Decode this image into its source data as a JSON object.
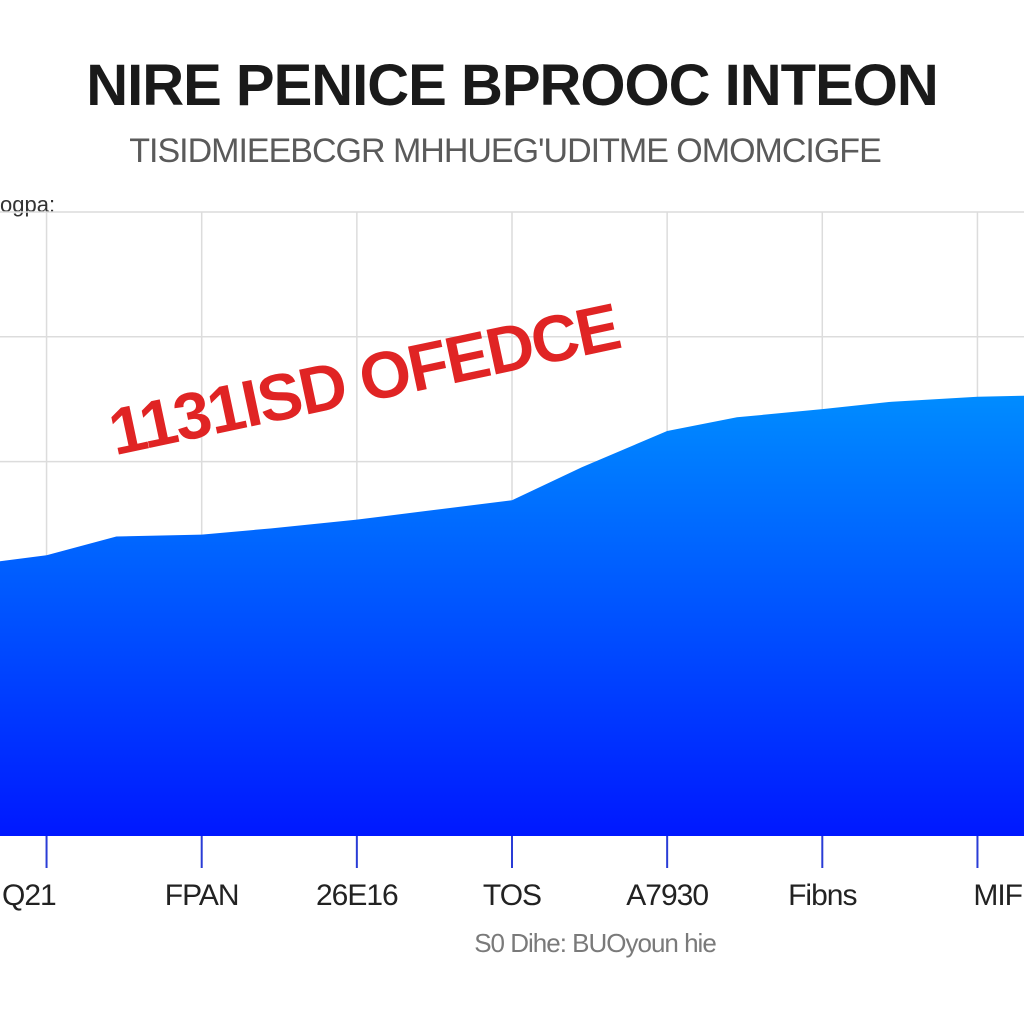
{
  "chart_data": {
    "type": "area",
    "title": "NIRE PENICE BPROOC INTEON",
    "subtitle": "TISIDMIEEBCGR MHHUEG'UDITME OMOMCIGFE",
    "ylabel": "ogpa:",
    "xlabel": "S0 Dihe: BUOyoun hie",
    "annotation": "1131ISD OFEDCE",
    "categories": [
      "Q21",
      "FPAN",
      "26E16",
      "TOS",
      "A7930",
      "Fibns",
      "MIF"
    ],
    "x": [
      0,
      0.45,
      1,
      1.45,
      2,
      2.45,
      3,
      3.45,
      4,
      4.45,
      5,
      5.45,
      6
    ],
    "values": [
      45,
      48,
      48.3,
      49.3,
      50.7,
      52.1,
      53.8,
      59.1,
      64.9,
      67.1,
      68.4,
      69.6,
      70.4
    ],
    "xlim": [
      -0.3,
      6.3
    ],
    "ylim": [
      0,
      100
    ],
    "grid": true,
    "colors": {
      "area_top": "#008cff",
      "area_bottom": "#0018ff",
      "grid": "#dcdcdc",
      "annotation": "#e02424"
    }
  }
}
